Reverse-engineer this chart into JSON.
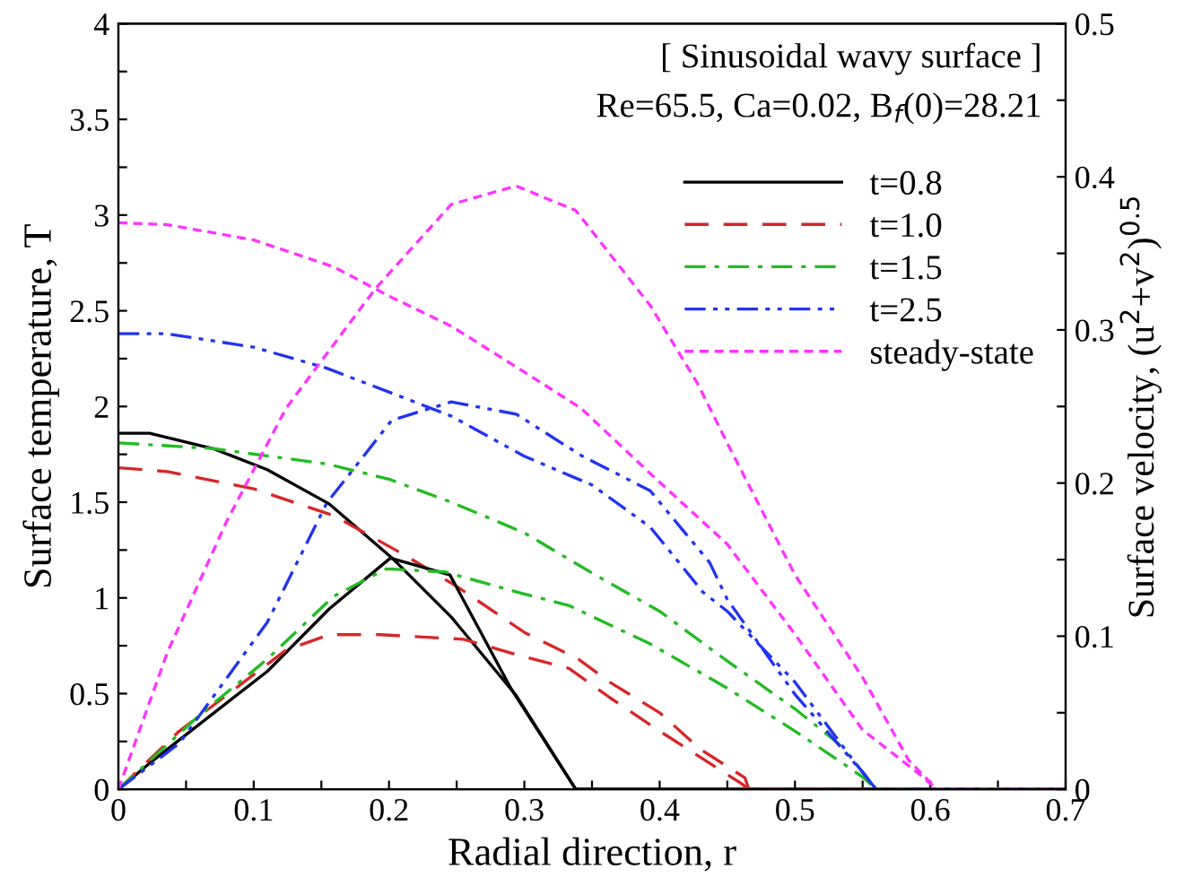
{
  "chart_data": {
    "type": "line",
    "xlabel": "Radial direction, r",
    "ylabel": "Surface temperature, T",
    "y2label": "Surface velocity, (u$^{2}$+v$^{2}$)$^{0.5}$",
    "annotations": [
      "[ Sinusoidal wavy surface ]",
      "Re=65.5, Ca=0.02, B$_{f}$(0)=28.21"
    ],
    "xlim": [
      0,
      0.7
    ],
    "xticks": [
      0,
      {
        "value": 0.05,
        "label": null
      },
      0.1,
      {
        "value": 0.15,
        "label": null
      },
      0.2,
      {
        "value": 0.25,
        "label": null
      },
      0.3,
      {
        "value": 0.35,
        "label": null
      },
      0.4,
      {
        "value": 0.45,
        "label": null
      },
      0.5,
      {
        "value": 0.55,
        "label": null
      },
      0.6,
      {
        "value": 0.65,
        "label": null
      },
      0.7
    ],
    "ylim": [
      0,
      4
    ],
    "yticks": [
      0,
      {
        "value": 0.25,
        "label": null
      },
      0.5,
      {
        "value": 0.75,
        "label": null
      },
      1,
      {
        "value": 1.25,
        "label": null
      },
      1.5,
      {
        "value": 1.75,
        "label": null
      },
      2,
      {
        "value": 2.25,
        "label": null
      },
      2.5,
      {
        "value": 2.75,
        "label": null
      },
      3,
      {
        "value": 3.25,
        "label": null
      },
      3.5,
      {
        "value": 3.75,
        "label": null
      },
      4
    ],
    "y2lim": [
      0,
      0.5
    ],
    "y2ticks": [
      0,
      {
        "value": 0.05,
        "label": null
      },
      0.1,
      {
        "value": 0.15,
        "label": null
      },
      0.2,
      {
        "value": 0.25,
        "label": null
      },
      0.3,
      {
        "value": 0.35,
        "label": null
      },
      0.4,
      {
        "value": 0.45,
        "label": null
      },
      0.5
    ],
    "legend": "top right",
    "grid": false,
    "marker": "none",
    "series": [
      {
        "name": "t=0.8",
        "color": "#000000",
        "line_style": "solid",
        "x": [
          0,
          0.023,
          0.07,
          0.11,
          0.156,
          0.202,
          0.246,
          0.294,
          0.338,
          0.7
        ],
        "values": [
          1.86,
          1.86,
          1.78,
          1.67,
          1.49,
          1.21,
          0.9,
          0.49,
          0,
          0
        ]
      },
      {
        "color": "#000000",
        "line_style": "solid",
        "axis": "y2",
        "x": [
          0,
          0.023,
          0.062,
          0.11,
          0.156,
          0.201,
          0.245,
          0.29,
          0.338,
          0.7
        ],
        "values": [
          0,
          0.017,
          0.044,
          0.077,
          0.118,
          0.151,
          0.14,
          0.066,
          0,
          0
        ]
      },
      {
        "name": "t=1.0",
        "color": "#d62728",
        "line_style": "dashed",
        "x": [
          0,
          0.036,
          0.1,
          0.159,
          0.21,
          0.25,
          0.3,
          0.34,
          0.363,
          0.4,
          0.43,
          0.463,
          0.466,
          0.7
        ],
        "values": [
          1.68,
          1.66,
          1.57,
          1.43,
          1.23,
          1.06,
          0.82,
          0.68,
          0.56,
          0.4,
          0.21,
          0.06,
          0,
          0
        ]
      },
      {
        "color": "#d62728",
        "line_style": "dashed",
        "axis": "y2",
        "x": [
          0,
          0.045,
          0.124,
          0.156,
          0.193,
          0.255,
          0.298,
          0.333,
          0.363,
          0.4,
          0.43,
          0.46,
          0.466,
          0.7
        ],
        "values": [
          0,
          0.038,
          0.091,
          0.101,
          0.101,
          0.098,
          0.087,
          0.079,
          0.06,
          0.038,
          0.021,
          0.004,
          0,
          0
        ]
      },
      {
        "name": "t=1.5",
        "color": "#22bb22",
        "line_style": "dashdot",
        "x": [
          0,
          0.07,
          0.154,
          0.2,
          0.246,
          0.3,
          0.35,
          0.4,
          0.45,
          0.5,
          0.532,
          0.55,
          0.56,
          0.7
        ],
        "values": [
          1.81,
          1.78,
          1.7,
          1.62,
          1.5,
          1.34,
          1.13,
          0.93,
          0.67,
          0.42,
          0.24,
          0.09,
          0,
          0
        ]
      },
      {
        "color": "#22bb22",
        "line_style": "dashdot",
        "axis": "y2",
        "x": [
          0,
          0.062,
          0.11,
          0.159,
          0.198,
          0.241,
          0.298,
          0.333,
          0.393,
          0.45,
          0.5,
          0.532,
          0.55,
          0.56,
          0.7
        ],
        "values": [
          0,
          0.05,
          0.085,
          0.126,
          0.144,
          0.142,
          0.128,
          0.12,
          0.095,
          0.066,
          0.038,
          0.019,
          0.008,
          0,
          0
        ]
      },
      {
        "name": "t=2.5",
        "color": "#2233ee",
        "line_style": "dashdotdot",
        "x": [
          0,
          0.036,
          0.1,
          0.154,
          0.202,
          0.246,
          0.3,
          0.35,
          0.393,
          0.432,
          0.45,
          0.5,
          0.54,
          0.56,
          0.7
        ],
        "values": [
          2.38,
          2.38,
          2.31,
          2.2,
          2.07,
          1.95,
          1.74,
          1.59,
          1.37,
          1.03,
          0.93,
          0.56,
          0.18,
          0,
          0
        ]
      },
      {
        "color": "#2233ee",
        "line_style": "dashdotdot",
        "axis": "y2",
        "x": [
          0,
          0.045,
          0.11,
          0.154,
          0.202,
          0.246,
          0.294,
          0.342,
          0.393,
          0.437,
          0.45,
          0.5,
          0.55,
          0.56,
          0.7
        ],
        "values": [
          0,
          0.03,
          0.109,
          0.187,
          0.241,
          0.253,
          0.245,
          0.218,
          0.195,
          0.148,
          0.124,
          0.062,
          0.011,
          0,
          0
        ]
      },
      {
        "name": "steady-state",
        "color": "#ff33ff",
        "line_style": "dotted",
        "x": [
          0,
          0.036,
          0.1,
          0.159,
          0.202,
          0.246,
          0.3,
          0.342,
          0.393,
          0.45,
          0.5,
          0.55,
          0.59,
          0.605,
          0.7
        ],
        "values": [
          2.96,
          2.95,
          2.87,
          2.73,
          2.57,
          2.42,
          2.18,
          1.99,
          1.65,
          1.28,
          0.81,
          0.31,
          0.09,
          0,
          0
        ]
      },
      {
        "color": "#ff33ff",
        "line_style": "dotted",
        "axis": "y2",
        "x": [
          0,
          0.036,
          0.08,
          0.124,
          0.19,
          0.246,
          0.294,
          0.338,
          0.393,
          0.428,
          0.45,
          0.5,
          0.55,
          0.584,
          0.605,
          0.7
        ],
        "values": [
          0,
          0.089,
          0.175,
          0.249,
          0.327,
          0.382,
          0.394,
          0.378,
          0.316,
          0.265,
          0.226,
          0.14,
          0.073,
          0.019,
          0,
          0
        ]
      }
    ]
  }
}
